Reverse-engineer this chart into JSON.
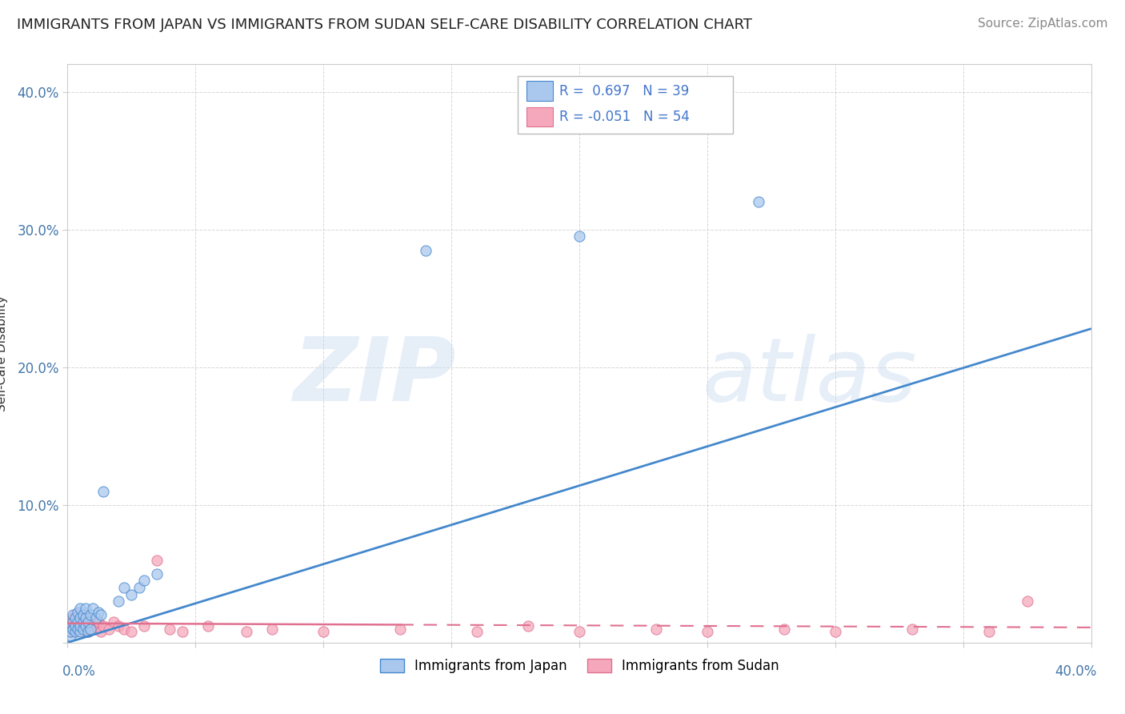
{
  "title": "IMMIGRANTS FROM JAPAN VS IMMIGRANTS FROM SUDAN SELF-CARE DISABILITY CORRELATION CHART",
  "source": "Source: ZipAtlas.com",
  "ylabel": "Self-Care Disability",
  "xlim": [
    0.0,
    0.4
  ],
  "ylim": [
    0.0,
    0.42
  ],
  "legend_japan_R": "0.697",
  "legend_japan_N": "39",
  "legend_sudan_R": "-0.051",
  "legend_sudan_N": "54",
  "japan_color": "#aac8ee",
  "sudan_color": "#f5a8bc",
  "japan_line_color": "#4488cc",
  "sudan_line_color": "#e07090",
  "background_color": "#ffffff",
  "grid_color": "#cccccc",
  "watermark_zip": "ZIP",
  "watermark_atlas": "atlas",
  "title_fontsize": 13,
  "source_fontsize": 11,
  "axis_label_fontsize": 11,
  "tick_fontsize": 12,
  "japan_scatter_x": [
    0.001,
    0.001,
    0.002,
    0.002,
    0.002,
    0.003,
    0.003,
    0.003,
    0.004,
    0.004,
    0.004,
    0.005,
    0.005,
    0.005,
    0.005,
    0.006,
    0.006,
    0.006,
    0.007,
    0.007,
    0.007,
    0.008,
    0.008,
    0.009,
    0.009,
    0.01,
    0.011,
    0.012,
    0.013,
    0.014,
    0.02,
    0.022,
    0.025,
    0.028,
    0.03,
    0.035,
    0.14,
    0.2,
    0.27
  ],
  "japan_scatter_y": [
    0.005,
    0.008,
    0.01,
    0.015,
    0.02,
    0.008,
    0.012,
    0.018,
    0.01,
    0.015,
    0.022,
    0.008,
    0.012,
    0.018,
    0.025,
    0.01,
    0.015,
    0.02,
    0.012,
    0.018,
    0.025,
    0.008,
    0.015,
    0.01,
    0.02,
    0.025,
    0.018,
    0.022,
    0.02,
    0.11,
    0.03,
    0.04,
    0.035,
    0.04,
    0.045,
    0.05,
    0.285,
    0.295,
    0.32
  ],
  "sudan_scatter_x": [
    0.001,
    0.001,
    0.002,
    0.002,
    0.002,
    0.003,
    0.003,
    0.003,
    0.004,
    0.004,
    0.004,
    0.005,
    0.005,
    0.005,
    0.005,
    0.006,
    0.006,
    0.006,
    0.007,
    0.007,
    0.007,
    0.008,
    0.008,
    0.009,
    0.009,
    0.01,
    0.011,
    0.012,
    0.013,
    0.014,
    0.016,
    0.018,
    0.02,
    0.022,
    0.025,
    0.03,
    0.035,
    0.04,
    0.045,
    0.055,
    0.07,
    0.08,
    0.1,
    0.13,
    0.16,
    0.18,
    0.2,
    0.23,
    0.25,
    0.28,
    0.3,
    0.33,
    0.36,
    0.375
  ],
  "sudan_scatter_y": [
    0.008,
    0.012,
    0.015,
    0.01,
    0.018,
    0.008,
    0.012,
    0.02,
    0.01,
    0.015,
    0.018,
    0.012,
    0.015,
    0.01,
    0.02,
    0.008,
    0.012,
    0.015,
    0.01,
    0.015,
    0.018,
    0.008,
    0.012,
    0.01,
    0.015,
    0.012,
    0.01,
    0.015,
    0.008,
    0.012,
    0.01,
    0.015,
    0.012,
    0.01,
    0.008,
    0.012,
    0.06,
    0.01,
    0.008,
    0.012,
    0.008,
    0.01,
    0.008,
    0.01,
    0.008,
    0.012,
    0.008,
    0.01,
    0.008,
    0.01,
    0.008,
    0.01,
    0.008,
    0.03
  ],
  "japan_line_x0": 0.0,
  "japan_line_y0": 0.0,
  "japan_line_x1": 0.4,
  "japan_line_y1": 0.228,
  "sudan_line_x0": 0.0,
  "sudan_line_y0": 0.014,
  "sudan_line_x1": 0.35,
  "sudan_line_y1": 0.012
}
